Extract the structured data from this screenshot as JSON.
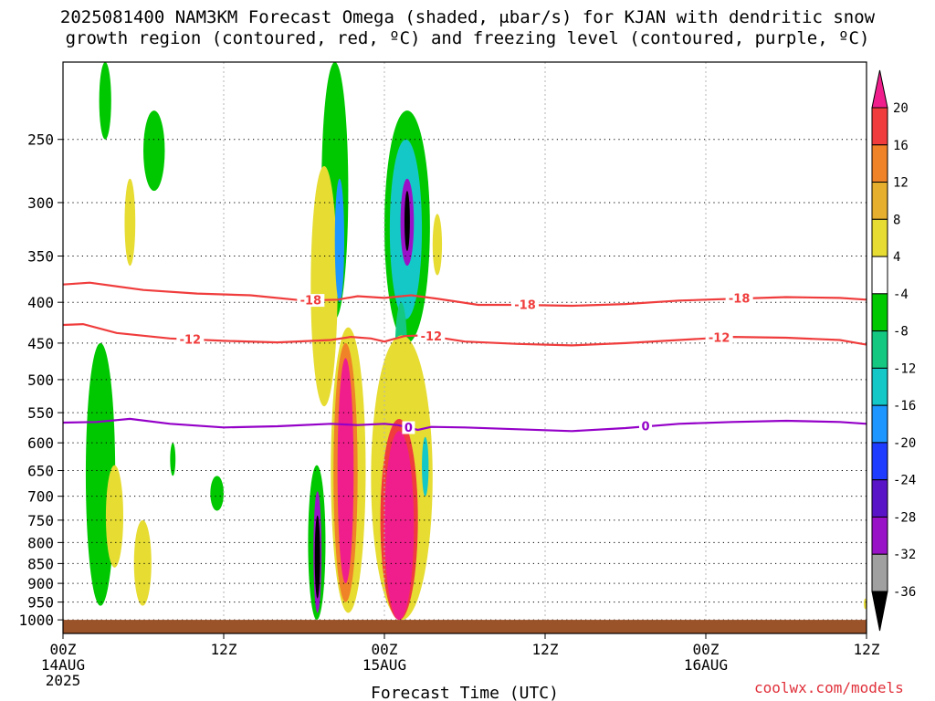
{
  "title": {
    "line1": "2025081400 NAM3KM Forecast Omega (shaded, μbar/s) for KJAN with dendritic snow",
    "line2": "growth region (contoured, red, ºC) and freezing level (contoured, purple, ºC)"
  },
  "credit": "coolwx.com/models",
  "colors": {
    "dgz_contour": "#f03c3c",
    "freezing_contour": "#9400c8",
    "terrain": "#9a5228"
  },
  "chart_data": [
    {
      "type": "contour",
      "xlabel": "Forecast Time (UTC)",
      "ylabel": "",
      "y_scale": "log-pressure",
      "y_inverted": true,
      "ylim": [
        1040,
        200
      ],
      "xlim": [
        0,
        60
      ],
      "grid": true,
      "x_ticks": [
        {
          "hour": 0,
          "label": "00Z",
          "sub": "14AUG",
          "year": "2025"
        },
        {
          "hour": 12,
          "label": "12Z",
          "sub": "",
          "year": ""
        },
        {
          "hour": 24,
          "label": "00Z",
          "sub": "15AUG",
          "year": ""
        },
        {
          "hour": 36,
          "label": "12Z",
          "sub": "",
          "year": ""
        },
        {
          "hour": 48,
          "label": "00Z",
          "sub": "16AUG",
          "year": ""
        },
        {
          "hour": 60,
          "label": "12Z",
          "sub": "",
          "year": ""
        }
      ],
      "y_ticks": [
        250,
        300,
        350,
        400,
        450,
        500,
        550,
        600,
        650,
        700,
        750,
        800,
        850,
        900,
        950,
        1000
      ],
      "colorbar": {
        "levels": [
          -36,
          -32,
          -28,
          -24,
          -20,
          -16,
          -12,
          -8,
          -4,
          4,
          8,
          12,
          16,
          20
        ],
        "colors": [
          "#000000",
          "#a0a0a0",
          "#9a12c8",
          "#5a14c8",
          "#1e3cff",
          "#1e96ff",
          "#14c8c8",
          "#14c882",
          "#00c800",
          "#ffffff",
          "#e6dc32",
          "#e6af2d",
          "#f08228",
          "#f03c3c",
          "#f01e8c"
        ]
      },
      "series": [
        {
          "name": "-18",
          "kind": "dgz",
          "labels": [
            {
              "x": 18.5,
              "text": "-18"
            },
            {
              "x": 34.5,
              "text": "-18"
            },
            {
              "x": 50.5,
              "text": "-18"
            }
          ],
          "points": [
            [
              0,
              380
            ],
            [
              2,
              378
            ],
            [
              6,
              386
            ],
            [
              10,
              390
            ],
            [
              14,
              392
            ],
            [
              18,
              398
            ],
            [
              20.5,
              397
            ],
            [
              22,
              393
            ],
            [
              24,
              395
            ],
            [
              26,
              392
            ],
            [
              28,
              396
            ],
            [
              31,
              403
            ],
            [
              34,
              403
            ],
            [
              38,
              404
            ],
            [
              42,
              402
            ],
            [
              46,
              398
            ],
            [
              50,
              396
            ],
            [
              54,
              394
            ],
            [
              58,
              395
            ],
            [
              60,
              397
            ]
          ]
        },
        {
          "name": "-12",
          "kind": "dgz",
          "labels": [
            {
              "x": 9.5,
              "text": "-12"
            },
            {
              "x": 27.5,
              "text": "-12"
            },
            {
              "x": 49,
              "text": "-12"
            }
          ],
          "points": [
            [
              0,
              427
            ],
            [
              1.5,
              426
            ],
            [
              4,
              437
            ],
            [
              8,
              444
            ],
            [
              12,
              447
            ],
            [
              16,
              449
            ],
            [
              20,
              446
            ],
            [
              21.5,
              442
            ],
            [
              23,
              444
            ],
            [
              24,
              448
            ],
            [
              25.5,
              441
            ],
            [
              27,
              440
            ],
            [
              30,
              448
            ],
            [
              34,
              451
            ],
            [
              38,
              453
            ],
            [
              42,
              450
            ],
            [
              46,
              446
            ],
            [
              50,
              442
            ],
            [
              54,
              443
            ],
            [
              58,
              446
            ],
            [
              60,
              452
            ]
          ]
        },
        {
          "name": "0",
          "kind": "freezing",
          "labels": [
            {
              "x": 25.8,
              "text": "0"
            },
            {
              "x": 43.5,
              "text": "0"
            }
          ],
          "points": [
            [
              0,
              566
            ],
            [
              2.5,
              565
            ],
            [
              5,
              560
            ],
            [
              8,
              568
            ],
            [
              12,
              574
            ],
            [
              16,
              572
            ],
            [
              20,
              568
            ],
            [
              22,
              570
            ],
            [
              24,
              568
            ],
            [
              25,
              570
            ],
            [
              26.5,
              578
            ],
            [
              27.5,
              573
            ],
            [
              30,
              574
            ],
            [
              34,
              577
            ],
            [
              38,
              580
            ],
            [
              42,
              575
            ],
            [
              46,
              568
            ],
            [
              50,
              565
            ],
            [
              54,
              563
            ],
            [
              58,
              565
            ],
            [
              60,
              568
            ]
          ]
        }
      ],
      "omega_features": [
        {
          "x": [
            2.7,
            3.6
          ],
          "p": [
            200,
            250
          ],
          "value": -6
        },
        {
          "x": [
            1.7,
            3.9
          ],
          "p": [
            450,
            960
          ],
          "value": -6
        },
        {
          "x": [
            3.2,
            4.5
          ],
          "p": [
            640,
            860
          ],
          "value": 5
        },
        {
          "x": [
            5.3,
            6.6
          ],
          "p": [
            750,
            960
          ],
          "value": 5
        },
        {
          "x": [
            6.0,
            7.6
          ],
          "p": [
            230,
            290
          ],
          "value": -6
        },
        {
          "x": [
            4.6,
            5.4
          ],
          "p": [
            280,
            360
          ],
          "value": 5
        },
        {
          "x": [
            8.0,
            8.4
          ],
          "p": [
            600,
            660
          ],
          "value": -6
        },
        {
          "x": [
            11.0,
            12.0
          ],
          "p": [
            660,
            730
          ],
          "value": -6
        },
        {
          "x": [
            19.3,
            21.3
          ],
          "p": [
            200,
            420
          ],
          "value": -6
        },
        {
          "x": [
            18.5,
            20.5
          ],
          "p": [
            270,
            540
          ],
          "value": 5
        },
        {
          "x": [
            20.3,
            21.0
          ],
          "p": [
            280,
            400
          ],
          "value": -18
        },
        {
          "x": [
            18.3,
            19.6
          ],
          "p": [
            640,
            1000
          ],
          "value": -6
        },
        {
          "x": [
            18.7,
            19.3
          ],
          "p": [
            690,
            980
          ],
          "value": -30
        },
        {
          "x": [
            18.8,
            19.2
          ],
          "p": [
            740,
            940
          ],
          "value": -40
        },
        {
          "x": [
            20.0,
            22.6
          ],
          "p": [
            430,
            980
          ],
          "value": 6
        },
        {
          "x": [
            20.2,
            22.0
          ],
          "p": [
            450,
            950
          ],
          "value": 14
        },
        {
          "x": [
            20.5,
            21.7
          ],
          "p": [
            470,
            900
          ],
          "value": 24
        },
        {
          "x": [
            24.0,
            27.4
          ],
          "p": [
            230,
            450
          ],
          "value": -6
        },
        {
          "x": [
            24.4,
            26.8
          ],
          "p": [
            250,
            420
          ],
          "value": -16
        },
        {
          "x": [
            25.2,
            26.2
          ],
          "p": [
            280,
            360
          ],
          "value": -30
        },
        {
          "x": [
            25.5,
            25.9
          ],
          "p": [
            290,
            345
          ],
          "value": -40
        },
        {
          "x": [
            24.8,
            25.7
          ],
          "p": [
            400,
            530
          ],
          "value": -12
        },
        {
          "x": [
            27.6,
            28.3
          ],
          "p": [
            310,
            370
          ],
          "value": 5
        },
        {
          "x": [
            23.0,
            27.6
          ],
          "p": [
            440,
            1000
          ],
          "value": 6
        },
        {
          "x": [
            23.7,
            26.5
          ],
          "p": [
            560,
            1000
          ],
          "value": 16
        },
        {
          "x": [
            24.0,
            26.2
          ],
          "p": [
            580,
            1000
          ],
          "value": 24
        },
        {
          "x": [
            26.8,
            27.3
          ],
          "p": [
            590,
            700
          ],
          "value": -14
        },
        {
          "x": [
            59.8,
            60.0
          ],
          "p": [
            940,
            970
          ],
          "value": 5
        }
      ]
    }
  ]
}
